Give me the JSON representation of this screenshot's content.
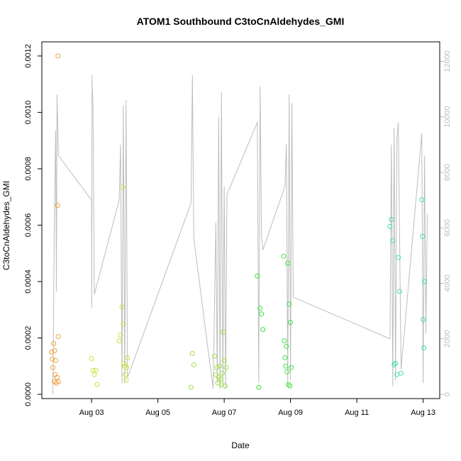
{
  "chart_data": {
    "type": "scatter",
    "title": "ATOM1 Southbound C3toCnAldehydes_GMI",
    "xlabel": "Date",
    "ylabel": "C3toCnAldehydes_GMI",
    "x_ticks": [
      "Aug 03",
      "Aug 05",
      "Aug 07",
      "Aug 09",
      "Aug 11",
      "Aug 13"
    ],
    "y_ticks": [
      "0.0000",
      "0.0002",
      "0.0004",
      "0.0006",
      "0.0008",
      "0.0010",
      "0.0012"
    ],
    "y2_ticks": [
      "0",
      "2000",
      "4000",
      "6000",
      "8000",
      "10000",
      "12000"
    ],
    "xlim": [
      "2016-08-01T12:00",
      "2016-08-13T12:00"
    ],
    "ylim": [
      0,
      0.00124
    ],
    "y2lim": [
      0,
      12600
    ],
    "grid": false,
    "colors": {
      "frame": "#000000",
      "secondary_series": "#bdbdbd",
      "right_axis": "#bdbdbd"
    },
    "series": [
      {
        "color": "#f0a040",
        "x": [
          "2016-08-01T19:00",
          "2016-08-01T19:30",
          "2016-08-01T20:00",
          "2016-08-01T20:30",
          "2016-08-01T21:00",
          "2016-08-01T21:20",
          "2016-08-01T21:40",
          "2016-08-01T22:00",
          "2016-08-01T22:30",
          "2016-08-01T23:00",
          "2016-08-01T23:20",
          "2016-08-01T23:40",
          "2016-08-01T23:50",
          "2016-08-02T00:00"
        ],
        "y": [
          0.00015,
          0.000125,
          9.5e-05,
          0.00018,
          4.5e-05,
          0.000155,
          7e-05,
          0.00012,
          4e-05,
          6e-05,
          0.00067,
          0.0012,
          0.000205,
          4.5e-05
        ]
      },
      {
        "color": "#c8e040",
        "x": [
          "2016-08-03T00:00",
          "2016-08-03T01:00",
          "2016-08-03T02:00",
          "2016-08-03T03:00",
          "2016-08-03T04:00",
          "2016-08-03T20:00",
          "2016-08-03T21:00",
          "2016-08-03T22:00",
          "2016-08-03T22:30",
          "2016-08-03T23:00",
          "2016-08-03T23:30",
          "2016-08-04T00:00",
          "2016-08-04T00:30",
          "2016-08-04T01:00",
          "2016-08-04T01:30",
          "2016-08-04T02:00"
        ],
        "y": [
          0.000127,
          8.5e-05,
          7e-05,
          8.5e-05,
          3.5e-05,
          0.00019,
          0.00021,
          0.00031,
          0.000735,
          0.00025,
          0.00011,
          0.0001,
          7e-05,
          5e-05,
          9.5e-05,
          0.00013
        ]
      },
      {
        "color": "#9ee040",
        "x": [
          "2016-08-06T00:00",
          "2016-08-06T01:00",
          "2016-08-06T02:00",
          "2016-08-06T17:00",
          "2016-08-06T18:00",
          "2016-08-06T18:40",
          "2016-08-06T19:20",
          "2016-08-06T20:00",
          "2016-08-06T20:40",
          "2016-08-06T21:20",
          "2016-08-06T22:00",
          "2016-08-06T22:40",
          "2016-08-06T23:20",
          "2016-08-07T00:00",
          "2016-08-07T00:40",
          "2016-08-07T01:20"
        ],
        "y": [
          2.5e-05,
          0.000145,
          0.000105,
          0.000135,
          7e-05,
          9.5e-05,
          4e-05,
          6e-05,
          0.0001,
          5.5e-05,
          3.5e-05,
          7.5e-05,
          0.00022,
          0.00012,
          3e-05,
          9.5e-05
        ]
      },
      {
        "color": "#40e040",
        "x": [
          "2016-08-08T00:00",
          "2016-08-08T01:00",
          "2016-08-08T02:00",
          "2016-08-08T03:00",
          "2016-08-08T04:00",
          "2016-08-08T19:00",
          "2016-08-08T19:30",
          "2016-08-08T20:00",
          "2016-08-08T20:30",
          "2016-08-08T21:00",
          "2016-08-08T21:30",
          "2016-08-08T22:00",
          "2016-08-08T22:30",
          "2016-08-08T23:00",
          "2016-08-08T23:30",
          "2016-08-09T00:00",
          "2016-08-09T00:30"
        ],
        "y": [
          0.00042,
          2.5e-05,
          0.000305,
          0.000285,
          0.00023,
          0.00049,
          0.00019,
          0.00013,
          0.0001,
          0.00017,
          8e-05,
          0.000465,
          3.5e-05,
          0.00032,
          3e-05,
          0.000255,
          9.5e-05
        ]
      },
      {
        "color": "#40e0a0",
        "x": [
          "2016-08-12T00:00",
          "2016-08-12T01:00",
          "2016-08-12T02:00",
          "2016-08-12T03:00",
          "2016-08-12T04:00",
          "2016-08-12T05:00",
          "2016-08-12T06:00",
          "2016-08-12T07:00",
          "2016-08-12T08:00",
          "2016-08-12T23:00",
          "2016-08-12T23:30",
          "2016-08-13T00:00",
          "2016-08-13T00:30",
          "2016-08-13T01:00"
        ],
        "y": [
          0.000595,
          0.00062,
          0.000545,
          0.000105,
          0.00011,
          7e-05,
          0.000485,
          0.000365,
          7.5e-05,
          0.00069,
          0.00056,
          0.000265,
          0.000165,
          0.0004
        ]
      }
    ]
  }
}
